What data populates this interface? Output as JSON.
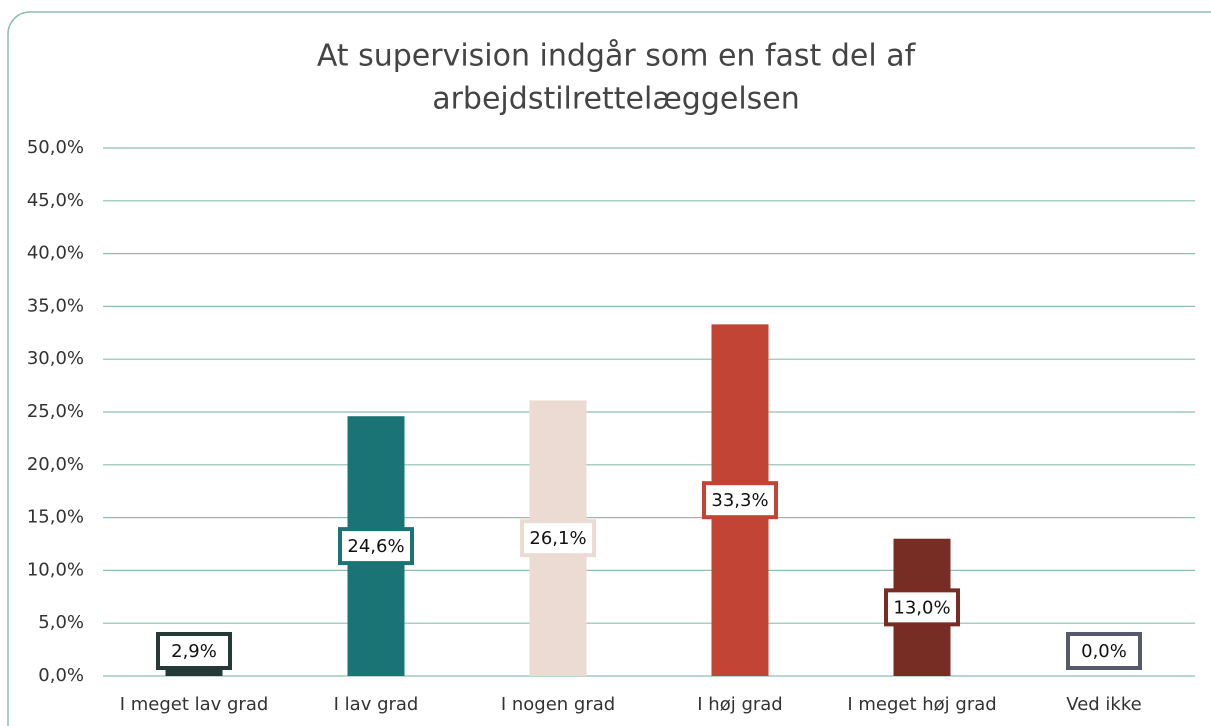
{
  "chart_data": {
    "type": "bar",
    "title": [
      "At supervision indgår som en fast del af",
      "arbejdstilrettelæggelsen"
    ],
    "categories": [
      "I meget lav grad",
      "I lav grad",
      "I nogen grad",
      "I høj grad",
      "I meget høj grad",
      "Ved ikke"
    ],
    "values": [
      2.9,
      24.6,
      26.1,
      33.3,
      13.0,
      0.0
    ],
    "value_labels": [
      "2,9%",
      "24,6%",
      "26,1%",
      "33,3%",
      "13,0%",
      "0,0%"
    ],
    "colors": [
      "#253a37",
      "#1a7374",
      "#ecdbd2",
      "#c24434",
      "#782d24",
      "#565a6c"
    ],
    "ylim": [
      0,
      50
    ],
    "yticks": [
      {
        "value": 0,
        "label": "0,0%"
      },
      {
        "value": 5,
        "label": "5,0%"
      },
      {
        "value": 10,
        "label": "10,0%"
      },
      {
        "value": 15,
        "label": "15,0%"
      },
      {
        "value": 20,
        "label": "20,0%"
      },
      {
        "value": 25,
        "label": "25,0%"
      },
      {
        "value": 30,
        "label": "30,0%"
      },
      {
        "value": 35,
        "label": "35,0%"
      },
      {
        "value": 40,
        "label": "40,0%"
      },
      {
        "value": 45,
        "label": "45,0%"
      },
      {
        "value": 50,
        "label": "50,0%"
      }
    ],
    "grid": true
  }
}
